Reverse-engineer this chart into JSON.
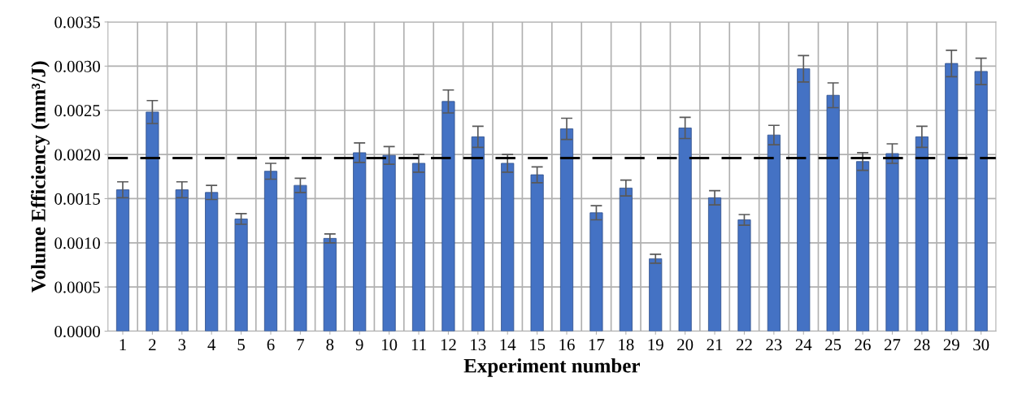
{
  "chart_data": {
    "type": "bar",
    "xlabel": "Experiment number",
    "ylabel": "Volume Efficiency (mm³/J)",
    "categories": [
      "1",
      "2",
      "3",
      "4",
      "5",
      "6",
      "7",
      "8",
      "9",
      "10",
      "11",
      "12",
      "13",
      "14",
      "15",
      "16",
      "17",
      "18",
      "19",
      "20",
      "21",
      "22",
      "23",
      "24",
      "25",
      "26",
      "27",
      "28",
      "29",
      "30"
    ],
    "values": [
      0.0016,
      0.00248,
      0.0016,
      0.00157,
      0.00127,
      0.00181,
      0.00165,
      0.00105,
      0.00202,
      0.00199,
      0.0019,
      0.0026,
      0.0022,
      0.0019,
      0.00177,
      0.00229,
      0.00134,
      0.00162,
      0.00082,
      0.0023,
      0.00151,
      0.00126,
      0.00222,
      0.00297,
      0.00267,
      0.00192,
      0.00201,
      0.0022,
      0.00303,
      0.00294
    ],
    "errors": [
      9e-05,
      0.00013,
      9e-05,
      8e-05,
      6e-05,
      9e-05,
      8e-05,
      5e-05,
      0.00011,
      0.0001,
      0.0001,
      0.00013,
      0.00012,
      0.0001,
      9e-05,
      0.00012,
      8e-05,
      9e-05,
      5e-05,
      0.00012,
      8e-05,
      6e-05,
      0.00011,
      0.00015,
      0.00014,
      0.0001,
      0.00011,
      0.00012,
      0.00015,
      0.00015
    ],
    "color": "#4472c4",
    "ylim": [
      0,
      0.0035
    ],
    "yticks": [
      {
        "value": 0,
        "label": "0.0000"
      },
      {
        "value": 0.0005,
        "label": "0.0005"
      },
      {
        "value": 0.001,
        "label": "0.0010"
      },
      {
        "value": 0.0015,
        "label": "0.0015"
      },
      {
        "value": 0.002,
        "label": "0.0020"
      },
      {
        "value": 0.0025,
        "label": "0.0025"
      },
      {
        "value": 0.003,
        "label": "0.0030"
      },
      {
        "value": 0.0035,
        "label": "0.0035"
      }
    ],
    "grid": true,
    "ref_lines": [
      {
        "axis": "y",
        "value": 0.00196,
        "color": "#000000",
        "line_style": "dashed"
      }
    ]
  }
}
